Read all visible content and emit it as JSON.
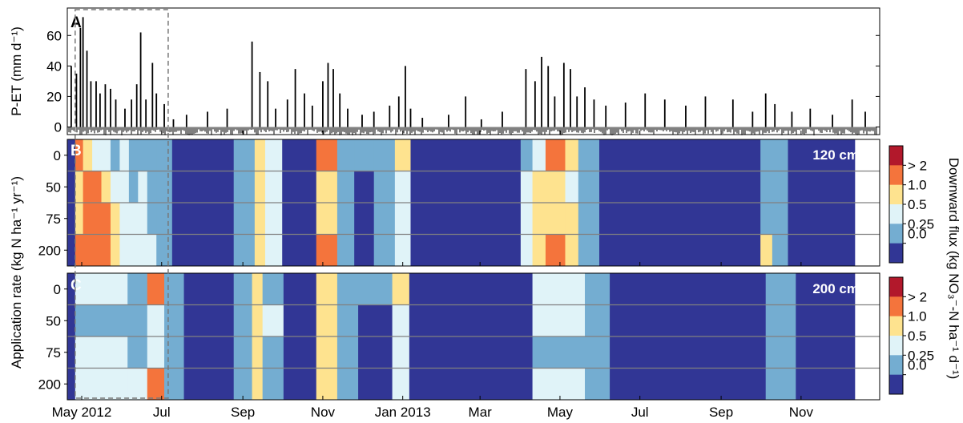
{
  "panels": {
    "a": {
      "letter": "A"
    },
    "b": {
      "letter": "B",
      "depth_label": "120 cm"
    },
    "c": {
      "letter": "C",
      "depth_label": "200 cm"
    }
  },
  "axes": {
    "pet_ylabel": "P-ET (mm d⁻¹)",
    "rate_ylabel": "Application rate (kg N ha⁻¹ yr⁻¹)",
    "colorbar_label": "Downward flux (kg NO₃⁻-N ha⁻¹ d⁻¹)"
  },
  "chart_data": [
    {
      "type": "bar",
      "panel": "A",
      "ylabel": "P-ET (mm d⁻¹)",
      "ylim": [
        -5,
        78
      ],
      "yticks": [
        0,
        20,
        40,
        60
      ],
      "x_range": [
        "2012-04-20",
        "2013-12-31"
      ],
      "note_values": "daily P-ET; dry days cluster between -2 and -6 mm d-1",
      "events": [
        {
          "date": "2012-04-23",
          "value": 40
        },
        {
          "date": "2012-04-27",
          "value": 35
        },
        {
          "date": "2012-04-30",
          "value": 65
        },
        {
          "date": "2012-05-02",
          "value": 72
        },
        {
          "date": "2012-05-05",
          "value": 50
        },
        {
          "date": "2012-05-08",
          "value": 30
        },
        {
          "date": "2012-05-12",
          "value": 30
        },
        {
          "date": "2012-05-15",
          "value": 22
        },
        {
          "date": "2012-05-19",
          "value": 28
        },
        {
          "date": "2012-05-23",
          "value": 25
        },
        {
          "date": "2012-05-27",
          "value": 18
        },
        {
          "date": "2012-06-03",
          "value": 12
        },
        {
          "date": "2012-06-08",
          "value": 18
        },
        {
          "date": "2012-06-12",
          "value": 28
        },
        {
          "date": "2012-06-15",
          "value": 62
        },
        {
          "date": "2012-06-19",
          "value": 18
        },
        {
          "date": "2012-06-24",
          "value": 42
        },
        {
          "date": "2012-06-27",
          "value": 22
        },
        {
          "date": "2012-07-03",
          "value": 15
        },
        {
          "date": "2012-07-10",
          "value": 5
        },
        {
          "date": "2012-07-20",
          "value": 8
        },
        {
          "date": "2012-08-05",
          "value": 10
        },
        {
          "date": "2012-08-20",
          "value": 12
        },
        {
          "date": "2012-09-08",
          "value": 56
        },
        {
          "date": "2012-09-14",
          "value": 36
        },
        {
          "date": "2012-09-20",
          "value": 30
        },
        {
          "date": "2012-09-26",
          "value": 12
        },
        {
          "date": "2012-10-05",
          "value": 18
        },
        {
          "date": "2012-10-11",
          "value": 38
        },
        {
          "date": "2012-10-18",
          "value": 22
        },
        {
          "date": "2012-10-24",
          "value": 14
        },
        {
          "date": "2012-11-01",
          "value": 30
        },
        {
          "date": "2012-11-05",
          "value": 42
        },
        {
          "date": "2012-11-09",
          "value": 38
        },
        {
          "date": "2012-11-14",
          "value": 22
        },
        {
          "date": "2012-11-20",
          "value": 12
        },
        {
          "date": "2012-12-01",
          "value": 8
        },
        {
          "date": "2012-12-10",
          "value": 10
        },
        {
          "date": "2012-12-22",
          "value": 14
        },
        {
          "date": "2012-12-29",
          "value": 20
        },
        {
          "date": "2013-01-03",
          "value": 40
        },
        {
          "date": "2013-01-07",
          "value": 12
        },
        {
          "date": "2013-01-16",
          "value": 6
        },
        {
          "date": "2013-02-05",
          "value": 8
        },
        {
          "date": "2013-02-18",
          "value": 20
        },
        {
          "date": "2013-03-02",
          "value": 5
        },
        {
          "date": "2013-03-18",
          "value": 10
        },
        {
          "date": "2013-04-05",
          "value": 38
        },
        {
          "date": "2013-04-12",
          "value": 30
        },
        {
          "date": "2013-04-17",
          "value": 46
        },
        {
          "date": "2013-04-22",
          "value": 40
        },
        {
          "date": "2013-04-27",
          "value": 20
        },
        {
          "date": "2013-05-04",
          "value": 42
        },
        {
          "date": "2013-05-09",
          "value": 38
        },
        {
          "date": "2013-05-14",
          "value": 20
        },
        {
          "date": "2013-05-20",
          "value": 26
        },
        {
          "date": "2013-05-27",
          "value": 18
        },
        {
          "date": "2013-06-05",
          "value": 14
        },
        {
          "date": "2013-06-20",
          "value": 16
        },
        {
          "date": "2013-07-05",
          "value": 22
        },
        {
          "date": "2013-07-20",
          "value": 18
        },
        {
          "date": "2013-08-05",
          "value": 14
        },
        {
          "date": "2013-08-20",
          "value": 20
        },
        {
          "date": "2013-09-10",
          "value": 18
        },
        {
          "date": "2013-09-25",
          "value": 10
        },
        {
          "date": "2013-10-05",
          "value": 22
        },
        {
          "date": "2013-10-12",
          "value": 15
        },
        {
          "date": "2013-10-25",
          "value": 10
        },
        {
          "date": "2013-11-08",
          "value": 12
        },
        {
          "date": "2013-11-25",
          "value": 8
        },
        {
          "date": "2013-12-10",
          "value": 18
        },
        {
          "date": "2013-12-20",
          "value": 10
        }
      ]
    },
    {
      "type": "heatmap",
      "panel": "B",
      "depth_label": "120 cm",
      "ylabel": "Application rate (kg N ha⁻¹ yr⁻¹)",
      "y_categories": [
        0,
        50,
        75,
        200
      ],
      "color_classes": [
        "0.0",
        "0.25",
        "0.5",
        "1.0",
        "> 2"
      ],
      "note": "class index per time block per application rate (0 = 0.0 ... 4 = > 2)",
      "blocks": [
        {
          "start": "2012-04-20",
          "end": "2012-04-26",
          "classes": [
            0,
            0,
            0,
            0
          ]
        },
        {
          "start": "2012-04-26",
          "end": "2012-05-02",
          "classes": [
            4,
            3,
            3,
            4
          ]
        },
        {
          "start": "2012-05-02",
          "end": "2012-05-09",
          "classes": [
            3,
            4,
            4,
            4
          ]
        },
        {
          "start": "2012-05-09",
          "end": "2012-05-16",
          "classes": [
            2,
            4,
            4,
            4
          ]
        },
        {
          "start": "2012-05-16",
          "end": "2012-05-23",
          "classes": [
            2,
            3,
            4,
            4
          ]
        },
        {
          "start": "2012-05-23",
          "end": "2012-05-30",
          "classes": [
            1,
            2,
            3,
            3
          ]
        },
        {
          "start": "2012-05-30",
          "end": "2012-06-06",
          "classes": [
            2,
            2,
            2,
            2
          ]
        },
        {
          "start": "2012-06-06",
          "end": "2012-06-13",
          "classes": [
            1,
            1,
            2,
            2
          ]
        },
        {
          "start": "2012-06-13",
          "end": "2012-06-20",
          "classes": [
            1,
            2,
            2,
            2
          ]
        },
        {
          "start": "2012-06-20",
          "end": "2012-06-27",
          "classes": [
            1,
            1,
            1,
            2
          ]
        },
        {
          "start": "2012-06-27",
          "end": "2012-07-06",
          "classes": [
            1,
            1,
            1,
            1
          ]
        },
        {
          "start": "2012-07-06",
          "end": "2012-07-09",
          "classes": [
            1,
            1,
            1,
            1
          ]
        },
        {
          "start": "2012-07-09",
          "end": "2012-08-25",
          "classes": [
            0,
            0,
            0,
            0
          ]
        },
        {
          "start": "2012-08-25",
          "end": "2012-09-10",
          "classes": [
            1,
            1,
            1,
            1
          ]
        },
        {
          "start": "2012-09-10",
          "end": "2012-09-18",
          "classes": [
            3,
            3,
            3,
            3
          ]
        },
        {
          "start": "2012-09-18",
          "end": "2012-10-01",
          "classes": [
            2,
            2,
            2,
            2
          ]
        },
        {
          "start": "2012-10-01",
          "end": "2012-10-27",
          "classes": [
            0,
            0,
            0,
            0
          ]
        },
        {
          "start": "2012-10-27",
          "end": "2012-11-12",
          "classes": [
            4,
            3,
            3,
            4
          ]
        },
        {
          "start": "2012-11-12",
          "end": "2012-11-25",
          "classes": [
            1,
            1,
            1,
            1
          ]
        },
        {
          "start": "2012-11-25",
          "end": "2012-12-10",
          "classes": [
            1,
            0,
            0,
            0
          ]
        },
        {
          "start": "2012-12-10",
          "end": "2012-12-26",
          "classes": [
            1,
            1,
            1,
            1
          ]
        },
        {
          "start": "2012-12-26",
          "end": "2013-01-07",
          "classes": [
            3,
            2,
            2,
            2
          ]
        },
        {
          "start": "2013-01-07",
          "end": "2013-04-01",
          "classes": [
            0,
            0,
            0,
            0
          ]
        },
        {
          "start": "2013-04-01",
          "end": "2013-04-10",
          "classes": [
            1,
            2,
            2,
            2
          ]
        },
        {
          "start": "2013-04-10",
          "end": "2013-04-20",
          "classes": [
            2,
            3,
            3,
            3
          ]
        },
        {
          "start": "2013-04-20",
          "end": "2013-05-05",
          "classes": [
            4,
            3,
            3,
            4
          ]
        },
        {
          "start": "2013-05-05",
          "end": "2013-05-15",
          "classes": [
            3,
            2,
            3,
            3
          ]
        },
        {
          "start": "2013-05-15",
          "end": "2013-05-31",
          "classes": [
            1,
            1,
            1,
            1
          ]
        },
        {
          "start": "2013-05-31",
          "end": "2013-10-01",
          "classes": [
            0,
            0,
            0,
            0
          ]
        },
        {
          "start": "2013-10-01",
          "end": "2013-10-10",
          "classes": [
            1,
            1,
            1,
            3
          ]
        },
        {
          "start": "2013-10-10",
          "end": "2013-10-22",
          "classes": [
            1,
            1,
            1,
            1
          ]
        },
        {
          "start": "2013-10-22",
          "end": "2013-12-12",
          "classes": [
            0,
            0,
            0,
            0
          ]
        }
      ]
    },
    {
      "type": "heatmap",
      "panel": "C",
      "depth_label": "200 cm",
      "ylabel": "Application rate (kg N ha⁻¹ yr⁻¹)",
      "y_categories": [
        0,
        50,
        75,
        200
      ],
      "color_classes": [
        "0.0",
        "0.25",
        "0.5",
        "1.0",
        "> 2"
      ],
      "note": "class index per time block per application rate (0 = 0.0 ... 4 = > 2)",
      "blocks": [
        {
          "start": "2012-04-20",
          "end": "2012-04-26",
          "classes": [
            0,
            0,
            0,
            0
          ]
        },
        {
          "start": "2012-04-26",
          "end": "2012-05-20",
          "classes": [
            2,
            1,
            2,
            2
          ]
        },
        {
          "start": "2012-05-20",
          "end": "2012-06-05",
          "classes": [
            2,
            1,
            2,
            2
          ]
        },
        {
          "start": "2012-06-05",
          "end": "2012-06-20",
          "classes": [
            1,
            1,
            1,
            2
          ]
        },
        {
          "start": "2012-06-20",
          "end": "2012-07-03",
          "classes": [
            4,
            2,
            2,
            4
          ]
        },
        {
          "start": "2012-07-03",
          "end": "2012-07-18",
          "classes": [
            1,
            1,
            1,
            1
          ]
        },
        {
          "start": "2012-07-18",
          "end": "2012-08-25",
          "classes": [
            0,
            0,
            0,
            0
          ]
        },
        {
          "start": "2012-08-25",
          "end": "2012-09-08",
          "classes": [
            1,
            1,
            1,
            1
          ]
        },
        {
          "start": "2012-09-08",
          "end": "2012-09-16",
          "classes": [
            3,
            3,
            3,
            3
          ]
        },
        {
          "start": "2012-09-16",
          "end": "2012-10-02",
          "classes": [
            1,
            2,
            1,
            1
          ]
        },
        {
          "start": "2012-10-02",
          "end": "2012-10-27",
          "classes": [
            0,
            0,
            0,
            0
          ]
        },
        {
          "start": "2012-10-27",
          "end": "2012-11-12",
          "classes": [
            3,
            3,
            3,
            3
          ]
        },
        {
          "start": "2012-11-12",
          "end": "2012-11-28",
          "classes": [
            1,
            1,
            1,
            1
          ]
        },
        {
          "start": "2012-11-28",
          "end": "2012-12-24",
          "classes": [
            1,
            0,
            0,
            0
          ]
        },
        {
          "start": "2012-12-24",
          "end": "2013-01-06",
          "classes": [
            3,
            2,
            2,
            2
          ]
        },
        {
          "start": "2013-01-06",
          "end": "2013-04-10",
          "classes": [
            0,
            0,
            0,
            0
          ]
        },
        {
          "start": "2013-04-10",
          "end": "2013-05-20",
          "classes": [
            2,
            2,
            1,
            2
          ]
        },
        {
          "start": "2013-05-20",
          "end": "2013-06-08",
          "classes": [
            1,
            1,
            1,
            1
          ]
        },
        {
          "start": "2013-06-08",
          "end": "2013-10-05",
          "classes": [
            0,
            0,
            0,
            0
          ]
        },
        {
          "start": "2013-10-05",
          "end": "2013-10-28",
          "classes": [
            1,
            1,
            1,
            1
          ]
        },
        {
          "start": "2013-10-28",
          "end": "2013-12-12",
          "classes": [
            0,
            0,
            0,
            0
          ]
        }
      ]
    }
  ],
  "x_axis": {
    "ticks": [
      {
        "date": "2012-05-01",
        "label": "May 2012"
      },
      {
        "date": "2012-07-01",
        "label": "Jul"
      },
      {
        "date": "2012-09-01",
        "label": "Sep"
      },
      {
        "date": "2012-11-01",
        "label": "Nov"
      },
      {
        "date": "2013-01-01",
        "label": "Jan 2013"
      },
      {
        "date": "2013-03-01",
        "label": "Mar"
      },
      {
        "date": "2013-05-01",
        "label": "May"
      },
      {
        "date": "2013-07-01",
        "label": "Jul"
      },
      {
        "date": "2013-09-01",
        "label": "Sep"
      },
      {
        "date": "2013-11-01",
        "label": "Nov"
      }
    ],
    "range": [
      "2012-04-20",
      "2013-12-31"
    ]
  },
  "highlight_window": {
    "start": "2012-04-26",
    "end": "2012-07-06"
  },
  "colorbar": {
    "ticks": [
      "> 2",
      "1.0",
      "0.5",
      "0.25",
      "0.0"
    ],
    "colors": [
      "#b2182b",
      "#f4743c",
      "#fee38f",
      "#e0f3f8",
      "#74add1",
      "#313695"
    ],
    "gridline_color": "#808080"
  }
}
